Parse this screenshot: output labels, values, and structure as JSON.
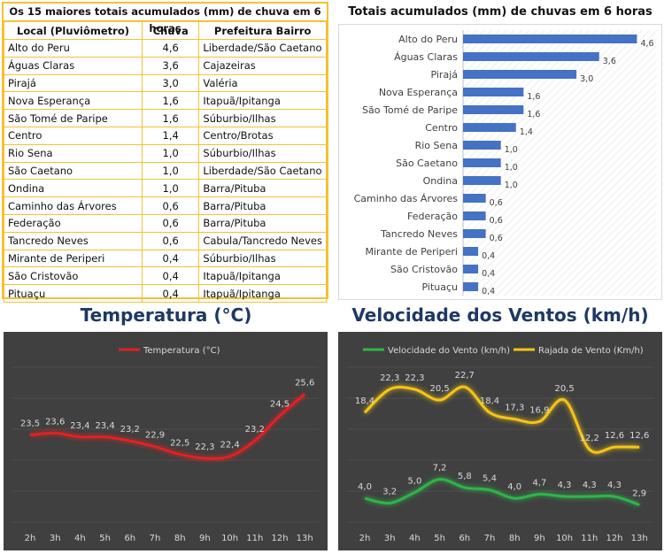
{
  "table": {
    "title": "Os 15 maiores totais acumulados (mm) de chuva em 6 horas",
    "headers": [
      "Local (Pluviômetro)",
      "Chuva",
      "Prefeitura Bairro"
    ],
    "rows": [
      [
        "Alto do Peru",
        "4,6",
        "Liberdade/São Caetano"
      ],
      [
        "Águas Claras",
        "3,6",
        "Cajazeiras"
      ],
      [
        "Pirajá",
        "3,0",
        "Valéria"
      ],
      [
        "Nova Esperança",
        "1,6",
        "Itapuã/Ipitanga"
      ],
      [
        "São Tomé de Paripe",
        "1,6",
        "Súburbio/Ilhas"
      ],
      [
        "Centro",
        "1,4",
        "Centro/Brotas"
      ],
      [
        "Rio Sena",
        "1,0",
        "Súburbio/Ilhas"
      ],
      [
        "São Caetano",
        "1,0",
        "Liberdade/São Caetano"
      ],
      [
        "Ondina",
        "1,0",
        "Barra/Pituba"
      ],
      [
        "Caminho das Árvores",
        "0,6",
        "Barra/Pituba"
      ],
      [
        "Federação",
        "0,6",
        "Barra/Pituba"
      ],
      [
        "Tancredo Neves",
        "0,6",
        "Cabula/Tancredo Neves"
      ],
      [
        "Mirante de Periperi",
        "0,4",
        "Súburbio/Ilhas"
      ],
      [
        "São Cristovão",
        "0,4",
        "Itapuã/Ipitanga"
      ],
      [
        "Pituaçu",
        "0,4",
        "Itapuã/Ipitanga"
      ]
    ]
  },
  "headings": {
    "temperature": "Temperatura (°C)",
    "wind": "Velocidade dos Ventos (km/h)"
  },
  "colors": {
    "table_border": "#f2c236",
    "bar": "#4472c4",
    "heading": "#1f3864",
    "temp_line": "#e02020",
    "wind_line": "#2fb54a",
    "gust_line": "#f5c518",
    "dark_bg": "#404040"
  },
  "chart_data": [
    {
      "type": "bar",
      "orientation": "horizontal",
      "title": "Totais acumulados (mm) de chuvas em 6 horas",
      "categories": [
        "Alto do Peru",
        "Águas Claras",
        "Pirajá",
        "Nova Esperança",
        "São Tomé de Paripe",
        "Centro",
        "Rio Sena",
        "São Caetano",
        "Ondina",
        "Caminho das Árvores",
        "Federação",
        "Tancredo Neves",
        "Mirante de Periperi",
        "São Cristovão",
        "Pituaçu"
      ],
      "values": [
        4.6,
        3.6,
        3.0,
        1.6,
        1.6,
        1.4,
        1.0,
        1.0,
        1.0,
        0.6,
        0.6,
        0.6,
        0.4,
        0.4,
        0.4
      ],
      "labels": [
        "4,6",
        "3,6",
        "3,0",
        "1,6",
        "1,6",
        "1,4",
        "1,0",
        "1,0",
        "1,0",
        "0,6",
        "0,6",
        "0,6",
        "0,4",
        "0,4",
        "0,4"
      ],
      "xlim": [
        0,
        4.8
      ]
    },
    {
      "type": "line",
      "x": [
        "2h",
        "3h",
        "4h",
        "5h",
        "6h",
        "7h",
        "8h",
        "9h",
        "10h",
        "11h",
        "12h",
        "13h"
      ],
      "series": [
        {
          "name": "Temperatura (°C)",
          "values": [
            23.5,
            23.6,
            23.4,
            23.4,
            23.2,
            22.9,
            22.5,
            22.3,
            22.4,
            23.2,
            24.5,
            25.6
          ],
          "labels": [
            "23,5",
            "23,6",
            "23,4",
            "23,4",
            "23,2",
            "22,9",
            "22,5",
            "22,3",
            "22,4",
            "23,2",
            "24,5",
            "25,6"
          ]
        }
      ],
      "legend": "top",
      "ylim": [
        19,
        27
      ]
    },
    {
      "type": "line",
      "x": [
        "2h",
        "3h",
        "4h",
        "5h",
        "6h",
        "7h",
        "8h",
        "9h",
        "10h",
        "11h",
        "12h",
        "13h"
      ],
      "series": [
        {
          "name": "Velocidade do Vento (km/h)",
          "values": [
            4.0,
            3.2,
            5.0,
            7.2,
            5.8,
            5.4,
            4.0,
            4.7,
            4.3,
            4.3,
            4.3,
            2.9
          ],
          "labels": [
            "4,0",
            "3,2",
            "5,0",
            "7,2",
            "5,8",
            "5,4",
            "4,0",
            "4,7",
            "4,3",
            "4,3",
            "4,3",
            "2,9"
          ]
        },
        {
          "name": "Rajada de Vento (Km/h)",
          "values": [
            18.4,
            22.3,
            22.3,
            20.5,
            22.7,
            18.4,
            17.3,
            16.9,
            20.5,
            12.2,
            12.6,
            12.6
          ],
          "labels": [
            "18,4",
            "22,3",
            "22,3",
            "20,5",
            "22,7",
            "18,4",
            "17,3",
            "16,9",
            "20,5",
            "12,2",
            "12,6",
            "12,6"
          ]
        }
      ],
      "legend": "top",
      "ylim": [
        0,
        26
      ]
    }
  ]
}
